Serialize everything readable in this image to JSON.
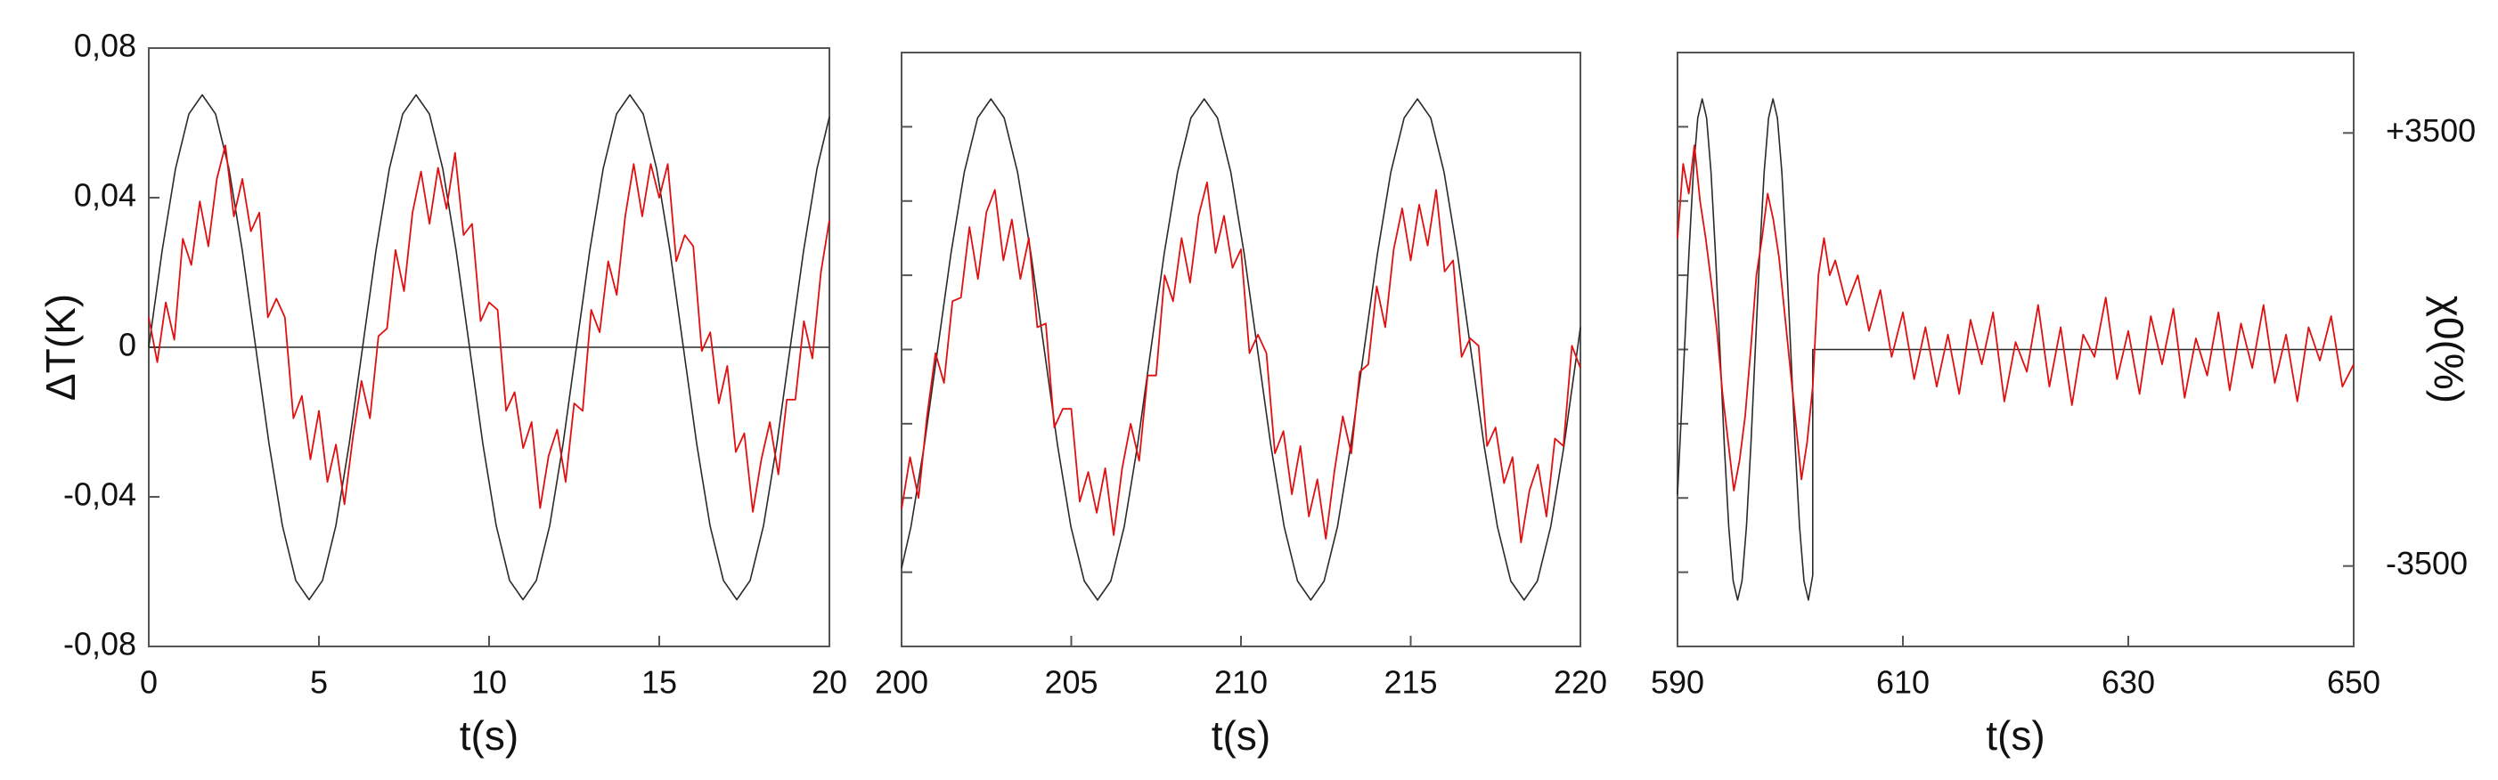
{
  "chart_data": [
    {
      "type": "line",
      "xlabel": "t(s)",
      "ylabel": "ΔT(K)",
      "xlim": [
        0,
        20
      ],
      "xticks": [
        0,
        5,
        10,
        15,
        20
      ],
      "ylim": [
        -0.08,
        0.08
      ],
      "yticks": [
        {
          "value": -0.08,
          "label": "-0,08"
        },
        {
          "value": -0.04,
          "label": "-0,04"
        },
        0,
        {
          "value": 0.04,
          "label": "0,04"
        },
        {
          "value": 0.08,
          "label": "0,08"
        }
      ],
      "ytick_labels": true,
      "zero_line": true,
      "y2lim": [
        -4800,
        4800
      ],
      "series": [
        {
          "color": "#2a2a2a",
          "axis": "y2",
          "x": [
            0,
            0.393,
            0.785,
            1.178,
            1.571,
            1.963,
            2.356,
            2.749,
            3.142,
            3.534,
            3.927,
            4.32,
            4.712,
            5.105,
            5.498,
            5.89,
            6.283,
            6.676,
            7.069,
            7.461,
            7.854,
            8.247,
            8.639,
            9.032,
            9.425,
            9.817,
            10.21,
            10.603,
            10.996,
            11.388,
            11.781,
            12.174,
            12.566,
            12.959,
            13.352,
            13.744,
            14.137,
            14.53,
            14.923,
            15.315,
            15.708,
            16.101,
            16.493,
            16.886,
            17.279,
            17.671,
            18.064,
            18.457,
            18.85,
            19.242,
            19.635,
            20
          ],
          "values": [
            0,
            1550,
            2864,
            3742,
            4050,
            3742,
            2864,
            1550,
            0,
            -1550,
            -2864,
            -3742,
            -4050,
            -3742,
            -2864,
            -1550,
            0,
            1550,
            2864,
            3742,
            4050,
            3742,
            2864,
            1550,
            0,
            -1550,
            -2864,
            -3742,
            -4050,
            -3742,
            -2864,
            -1550,
            0,
            1550,
            2864,
            3742,
            4050,
            3742,
            2864,
            1550,
            0,
            -1550,
            -2864,
            -3742,
            -4050,
            -3742,
            -2864,
            -1550,
            0,
            1550,
            2864,
            3697
          ]
        },
        {
          "color": "#e01010",
          "x": [
            0,
            0.25,
            0.5,
            0.75,
            1,
            1.25,
            1.5,
            1.75,
            2,
            2.25,
            2.5,
            2.75,
            3,
            3.25,
            3.5,
            3.75,
            4,
            4.25,
            4.5,
            4.75,
            5,
            5.25,
            5.5,
            5.75,
            6,
            6.25,
            6.5,
            6.75,
            7,
            7.25,
            7.5,
            7.75,
            8,
            8.25,
            8.5,
            8.75,
            9,
            9.25,
            9.5,
            9.75,
            10,
            10.25,
            10.5,
            10.75,
            11,
            11.25,
            11.5,
            11.75,
            12,
            12.25,
            12.5,
            12.75,
            13,
            13.25,
            13.5,
            13.75,
            14,
            14.25,
            14.5,
            14.75,
            15,
            15.25,
            15.5,
            15.75,
            16,
            16.25,
            16.5,
            16.75,
            17,
            17.25,
            17.5,
            17.75,
            18,
            18.25,
            18.5,
            18.75,
            19,
            19.25,
            19.5,
            19.75,
            20
          ],
          "values": [
            0.008,
            -0.004,
            0.012,
            0.002,
            0.029,
            0.022,
            0.039,
            0.027,
            0.045,
            0.054,
            0.035,
            0.045,
            0.031,
            0.036,
            0.008,
            0.013,
            0.008,
            -0.019,
            -0.013,
            -0.03,
            -0.017,
            -0.036,
            -0.026,
            -0.042,
            -0.024,
            -0.009,
            -0.019,
            0.003,
            0.005,
            0.026,
            0.015,
            0.036,
            0.047,
            0.033,
            0.048,
            0.037,
            0.052,
            0.03,
            0.033,
            0.007,
            0.012,
            0.01,
            -0.017,
            -0.012,
            -0.027,
            -0.02,
            -0.043,
            -0.029,
            -0.022,
            -0.036,
            -0.015,
            -0.017,
            0.01,
            0.004,
            0.023,
            0.014,
            0.035,
            0.049,
            0.035,
            0.049,
            0.04,
            0.049,
            0.023,
            0.03,
            0.027,
            -0.001,
            0.004,
            -0.015,
            -0.005,
            -0.028,
            -0.023,
            -0.044,
            -0.03,
            -0.02,
            -0.034,
            -0.014,
            -0.014,
            0.007,
            -0.003,
            0.02,
            0.034
          ]
        }
      ]
    },
    {
      "type": "line",
      "xlabel": "t(s)",
      "xlim": [
        200,
        220
      ],
      "xticks": [
        200,
        205,
        210,
        215,
        220
      ],
      "ylim": [
        -0.08,
        0.08
      ],
      "yticks": [
        -0.06,
        -0.04,
        -0.02,
        0,
        0.02,
        0.04,
        0.06
      ],
      "ytick_labels": false,
      "y2lim": [
        -4800,
        4800
      ],
      "series": [
        {
          "color": "#2a2a2a",
          "axis": "y2",
          "x": [
            200,
            200.277,
            200.669,
            201.062,
            201.455,
            201.847,
            202.24,
            202.633,
            203.025,
            203.418,
            203.811,
            204.204,
            204.596,
            204.989,
            205.382,
            205.774,
            206.167,
            206.56,
            206.952,
            207.345,
            207.738,
            208.131,
            208.523,
            208.916,
            209.309,
            209.701,
            210.094,
            210.487,
            210.879,
            211.272,
            211.665,
            212.057,
            212.45,
            212.843,
            213.236,
            213.628,
            214.021,
            214.414,
            214.806,
            215.199,
            215.592,
            215.984,
            216.377,
            216.77,
            217.162,
            217.555,
            217.948,
            218.341,
            218.733,
            219.126,
            219.519,
            219.911,
            220
          ],
          "values": [
            -3536,
            -2864,
            -1550,
            0,
            1550,
            2864,
            3742,
            4050,
            3742,
            2864,
            1550,
            0,
            -1550,
            -2864,
            -3742,
            -4050,
            -3742,
            -2864,
            -1550,
            0,
            1550,
            2864,
            3742,
            4050,
            3742,
            2864,
            1550,
            0,
            -1550,
            -2864,
            -3742,
            -4050,
            -3742,
            -2864,
            -1550,
            0,
            1550,
            2864,
            3742,
            4050,
            3742,
            2864,
            1550,
            0,
            -1550,
            -2864,
            -3742,
            -4050,
            -3742,
            -2864,
            -1550,
            0,
            360
          ]
        },
        {
          "color": "#e01010",
          "x": [
            200,
            200.25,
            200.5,
            200.75,
            201,
            201.25,
            201.5,
            201.75,
            202,
            202.25,
            202.5,
            202.75,
            203,
            203.25,
            203.5,
            203.75,
            204,
            204.25,
            204.5,
            204.75,
            205,
            205.25,
            205.5,
            205.75,
            206,
            206.25,
            206.5,
            206.75,
            207,
            207.25,
            207.5,
            207.75,
            208,
            208.25,
            208.5,
            208.75,
            209,
            209.25,
            209.5,
            209.75,
            210,
            210.25,
            210.5,
            210.75,
            211,
            211.25,
            211.5,
            211.75,
            212,
            212.25,
            212.5,
            212.75,
            213,
            213.25,
            213.5,
            213.75,
            214,
            214.25,
            214.5,
            214.75,
            215,
            215.25,
            215.5,
            215.75,
            216,
            216.25,
            216.5,
            216.75,
            217,
            217.25,
            217.5,
            217.75,
            218,
            218.25,
            218.5,
            218.75,
            219,
            219.25,
            219.5,
            219.75,
            220
          ],
          "values": [
            -0.043,
            -0.029,
            -0.04,
            -0.018,
            -0.001,
            -0.009,
            0.013,
            0.014,
            0.033,
            0.019,
            0.037,
            0.043,
            0.024,
            0.035,
            0.019,
            0.03,
            0.006,
            0.007,
            -0.021,
            -0.016,
            -0.016,
            -0.041,
            -0.033,
            -0.044,
            -0.032,
            -0.05,
            -0.032,
            -0.02,
            -0.03,
            -0.007,
            -0.007,
            0.02,
            0.013,
            0.03,
            0.018,
            0.036,
            0.045,
            0.026,
            0.036,
            0.022,
            0.027,
            -0.001,
            0.004,
            -0.001,
            -0.028,
            -0.022,
            -0.039,
            -0.026,
            -0.045,
            -0.035,
            -0.051,
            -0.033,
            -0.018,
            -0.028,
            -0.006,
            -0.004,
            0.017,
            0.006,
            0.027,
            0.038,
            0.024,
            0.039,
            0.028,
            0.043,
            0.021,
            0.024,
            -0.002,
            0.003,
            0.001,
            -0.026,
            -0.021,
            -0.036,
            -0.029,
            -0.052,
            -0.038,
            -0.031,
            -0.045,
            -0.024,
            -0.026,
            0.001,
            -0.005
          ]
        }
      ]
    },
    {
      "type": "line",
      "xlabel": "t(s)",
      "y2label": "χ0(%)",
      "xlim": [
        590,
        650
      ],
      "xticks": [
        590,
        610,
        630,
        650
      ],
      "ylim": [
        -0.08,
        0.08
      ],
      "yticks": [
        -0.06,
        -0.04,
        -0.02,
        0,
        0.02,
        0.04,
        0.06
      ],
      "ytick_labels": false,
      "y2lim": [
        -4800,
        4800
      ],
      "y2ticks": [
        {
          "value": 3500,
          "label": "+3500"
        },
        -3500
      ],
      "series": [
        {
          "color": "#2a2a2a",
          "axis": "y2",
          "x": [
            590,
            590.619,
            591.012,
            591.405,
            591.797,
            592.19,
            592.583,
            592.975,
            593.368,
            593.761,
            594.154,
            594.546,
            594.939,
            595.332,
            595.725,
            596.117,
            596.51,
            596.903,
            597.296,
            597.688,
            598.081,
            598.473,
            598.866,
            599.259,
            599.652,
            600.044,
            600.437,
            600.83,
            601.222,
            601.615,
            602,
            602,
            650
          ],
          "values": [
            -2341,
            0,
            1550,
            2864,
            3742,
            4050,
            3742,
            2864,
            1550,
            0,
            -1550,
            -2864,
            -3742,
            -4050,
            -3742,
            -2864,
            -1550,
            0,
            1550,
            2864,
            3742,
            4050,
            3742,
            2864,
            1550,
            0,
            -1550,
            -2864,
            -3742,
            -4050,
            -3650,
            0,
            0
          ]
        },
        {
          "color": "#e01010",
          "x": [
            590,
            590.5,
            591,
            591.5,
            592,
            592.5,
            593,
            593.5,
            594,
            594.5,
            595,
            595.5,
            596,
            596.5,
            597,
            597.5,
            598,
            598.5,
            599,
            599.5,
            600,
            600.5,
            601,
            601.5,
            602,
            602.5,
            603,
            603.5,
            604,
            605,
            606,
            607,
            608,
            609,
            610,
            611,
            612,
            613,
            614,
            615,
            616,
            617,
            618,
            619,
            620,
            621,
            622,
            623,
            624,
            625,
            626,
            627,
            628,
            629,
            630,
            631,
            632,
            633,
            634,
            635,
            636,
            637,
            638,
            639,
            640,
            641,
            642,
            643,
            644,
            645,
            646,
            647,
            648,
            649,
            650
          ],
          "values": [
            0.03,
            0.05,
            0.042,
            0.055,
            0.04,
            0.03,
            0.018,
            0.005,
            -0.012,
            -0.025,
            -0.038,
            -0.03,
            -0.018,
            0,
            0.02,
            0.03,
            0.042,
            0.035,
            0.025,
            0.01,
            -0.005,
            -0.02,
            -0.035,
            -0.025,
            -0.01,
            0.02,
            0.03,
            0.02,
            0.024,
            0.012,
            0.02,
            0.005,
            0.016,
            -0.002,
            0.01,
            -0.008,
            0.006,
            -0.01,
            0.004,
            -0.012,
            0.008,
            -0.004,
            0.01,
            -0.014,
            0.002,
            -0.006,
            0.012,
            -0.01,
            0.006,
            -0.015,
            0.004,
            -0.002,
            0.014,
            -0.008,
            0.005,
            -0.012,
            0.009,
            -0.004,
            0.011,
            -0.013,
            0.003,
            -0.007,
            0.01,
            -0.011,
            0.007,
            -0.005,
            0.012,
            -0.009,
            0.004,
            -0.014,
            0.006,
            -0.003,
            0.009,
            -0.01,
            -0.004
          ]
        }
      ]
    }
  ]
}
